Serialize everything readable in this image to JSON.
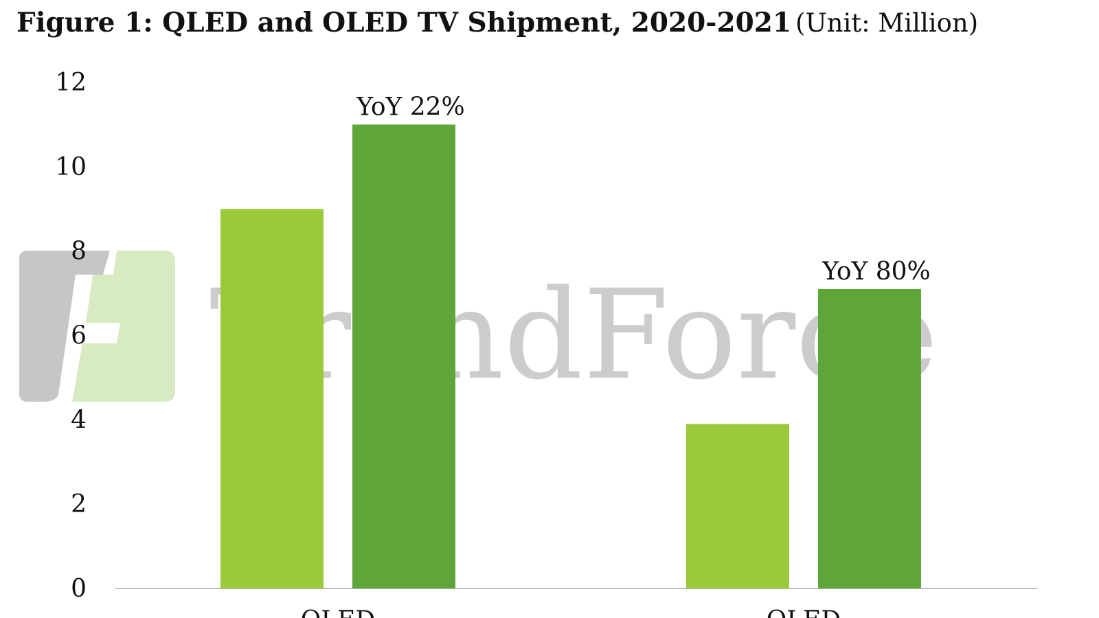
{
  "title": {
    "main": "Figure 1: QLED and OLED TV Shipment, 2020-2021",
    "unit": "(Unit: Million)"
  },
  "watermark": {
    "text": "TrendForce",
    "logo_colors": [
      "#b5b5b5",
      "#cfe3b4"
    ]
  },
  "colors": {
    "series_2020": "#9bc93a",
    "series_2021": "#5ea63a",
    "axis_line": "#bfbfbf",
    "text": "#111111"
  },
  "chart_data": {
    "type": "bar",
    "categories": [
      "QLED",
      "OLED"
    ],
    "series": [
      {
        "values": [
          9.0,
          3.9
        ]
      },
      {
        "values": [
          11.0,
          7.1
        ]
      }
    ],
    "annotations": [
      "YoY 22%",
      "YoY 80%"
    ],
    "yticks": [
      0,
      2,
      4,
      6,
      8,
      10,
      12
    ],
    "ylim": [
      0,
      12
    ],
    "grid": false,
    "legend": "none"
  }
}
